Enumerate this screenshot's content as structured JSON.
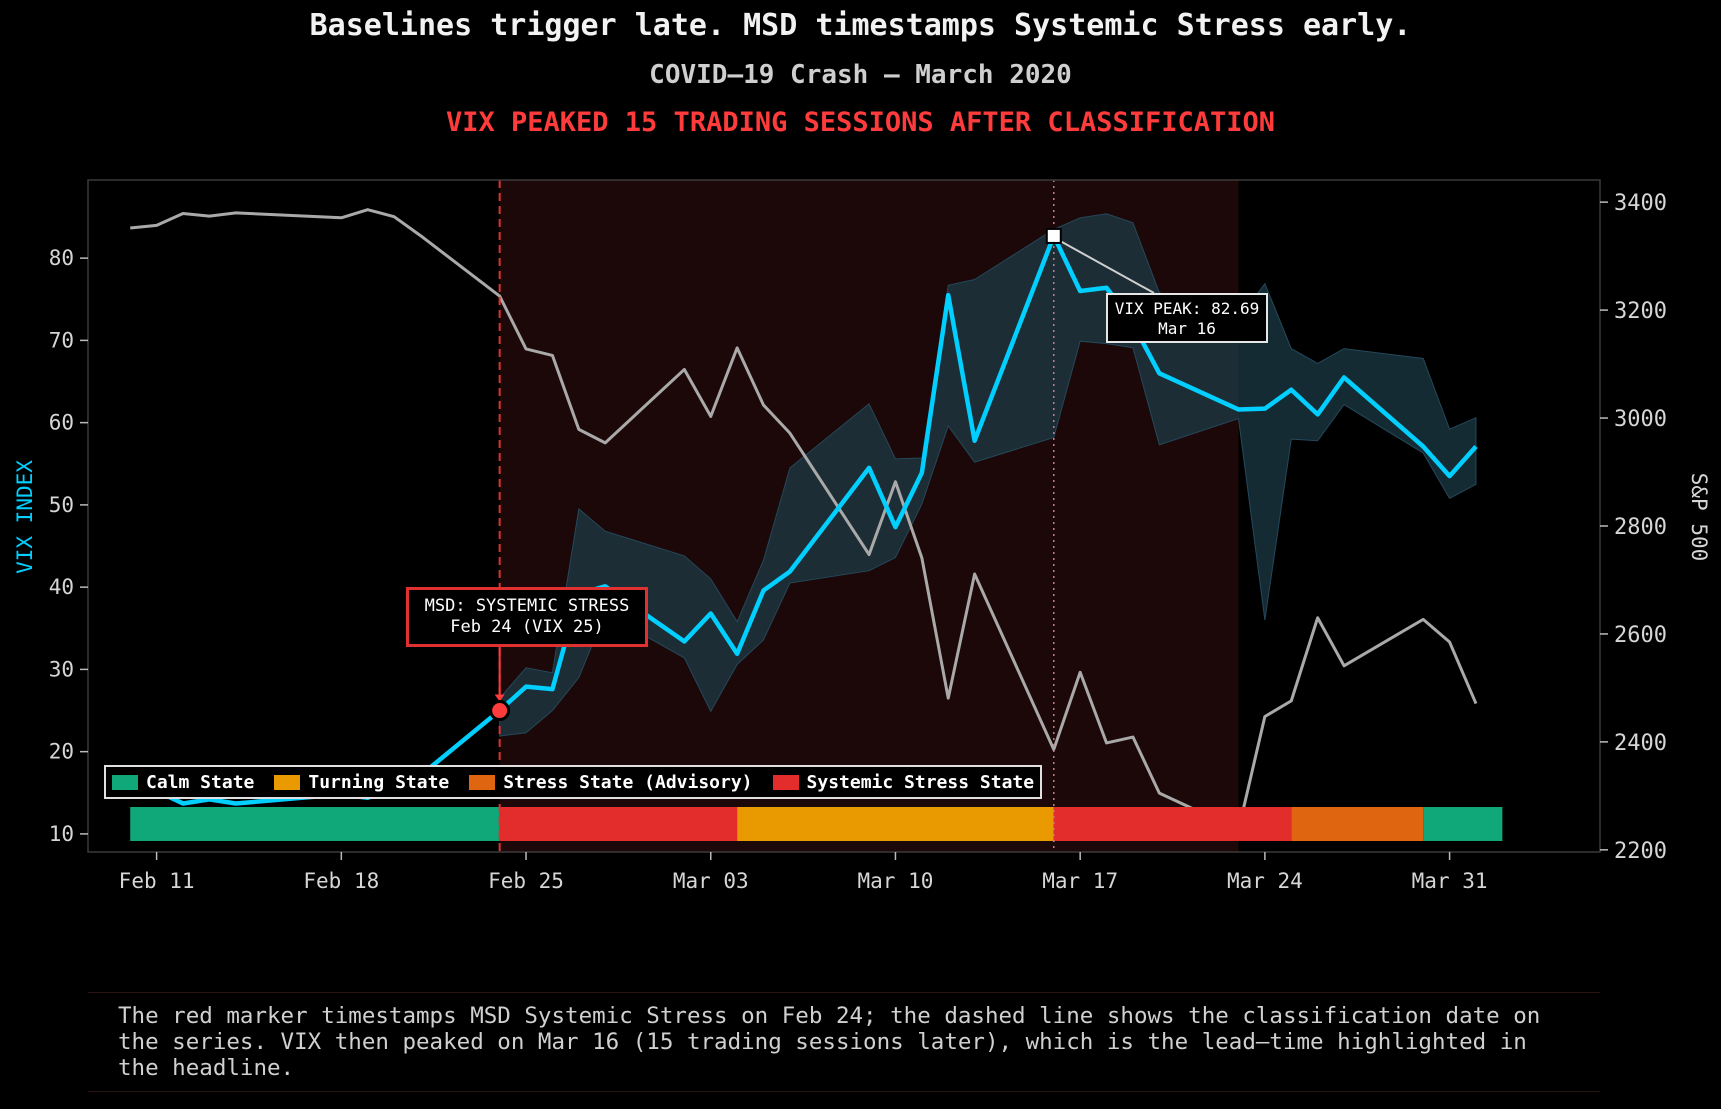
{
  "header": {
    "title": "Baselines trigger late. MSD timestamps Systemic Stress early.",
    "subtitle": "COVID–19 Crash — March 2020",
    "headline": "VIX PEAKED 15 TRADING SESSIONS AFTER CLASSIFICATION"
  },
  "colors": {
    "vix": "#00cfff",
    "spx": "#a9a9a9",
    "band": "#1c3a46",
    "stress_shade": "#1c0808",
    "calm": "#10a878",
    "turning": "#e89a00",
    "stress": "#e06510",
    "systemic": "#e32d2d"
  },
  "chart_data": {
    "type": "line",
    "xlabel": "",
    "ylabel_left": "VIX INDEX",
    "ylabel_right": "S&P 500",
    "x_ticks": [
      "Feb 11",
      "Feb 18",
      "Feb 25",
      "Mar 03",
      "Mar 10",
      "Mar 17",
      "Mar 24",
      "Mar 31"
    ],
    "y_left_ticks": [
      10,
      20,
      30,
      40,
      50,
      60,
      70,
      80
    ],
    "y_right_ticks": [
      2200,
      2400,
      2600,
      2800,
      3000,
      3200,
      3400
    ],
    "ylim_left": [
      7.8,
      89.5
    ],
    "ylim_right": [
      2196,
      3441
    ],
    "xlim_days": [
      -2.6,
      54.7
    ],
    "dates": [
      "Feb 10",
      "Feb 11",
      "Feb 12",
      "Feb 13",
      "Feb 14",
      "Feb 18",
      "Feb 19",
      "Feb 20",
      "Feb 21",
      "Feb 24",
      "Feb 25",
      "Feb 26",
      "Feb 27",
      "Feb 28",
      "Mar 02",
      "Mar 03",
      "Mar 04",
      "Mar 05",
      "Mar 06",
      "Mar 09",
      "Mar 10",
      "Mar 11",
      "Mar 12",
      "Mar 13",
      "Mar 16",
      "Mar 17",
      "Mar 18",
      "Mar 19",
      "Mar 20",
      "Mar 23",
      "Mar 24",
      "Mar 25",
      "Mar 26",
      "Mar 27",
      "Mar 30",
      "Mar 31",
      "Apr 01"
    ],
    "series": [
      {
        "name": "VIX INDEX",
        "values": [
          15.0,
          15.2,
          13.7,
          14.2,
          13.7,
          14.8,
          14.4,
          15.6,
          17.1,
          25.0,
          27.9,
          27.6,
          39.2,
          40.1,
          33.4,
          36.8,
          31.9,
          39.6,
          41.9,
          54.5,
          47.3,
          53.9,
          75.5,
          57.8,
          82.7,
          76.0,
          76.4,
          72.0,
          66.0,
          61.6,
          61.7,
          64.0,
          61.0,
          65.5,
          57.1,
          53.5,
          57.1
        ]
      },
      {
        "name": "S&P 500",
        "values": [
          3352,
          3357,
          3379,
          3374,
          3380,
          3371,
          3386,
          3373,
          3338,
          3226,
          3128,
          3116,
          2979,
          2954,
          3090,
          3003,
          3130,
          3024,
          2972,
          2747,
          2882,
          2741,
          2481,
          2711,
          2386,
          2529,
          2398,
          2409,
          2305,
          2237,
          2447,
          2476,
          2630,
          2541,
          2627,
          2585,
          2471
        ]
      }
    ],
    "band_upper": [
      null,
      null,
      null,
      null,
      null,
      null,
      null,
      null,
      null,
      26.5,
      30.2,
      29.6,
      49.5,
      46.8,
      43.8,
      41.0,
      35.8,
      43.3,
      54.5,
      62.3,
      55.6,
      55.7,
      76.7,
      77.4,
      83.5,
      84.9,
      85.4,
      84.3,
      75.8,
      72.6,
      76.9,
      69.0,
      67.2,
      69.0,
      67.8,
      59.2,
      60.6
    ],
    "band_lower": [
      null,
      null,
      null,
      null,
      null,
      null,
      null,
      null,
      null,
      21.9,
      22.3,
      25.0,
      29.0,
      36.8,
      31.4,
      24.9,
      30.6,
      33.6,
      40.5,
      42.0,
      43.6,
      50.1,
      59.6,
      55.2,
      58.2,
      69.9,
      69.6,
      69.1,
      57.3,
      60.5,
      36.0,
      58.0,
      57.8,
      62.2,
      56.3,
      50.8,
      52.5
    ],
    "regimes": [
      {
        "state": "Calm State",
        "from": -1,
        "to": 13,
        "color_key": "calm"
      },
      {
        "state": "Systemic Stress State",
        "from": 13,
        "to": 22,
        "color_key": "systemic"
      },
      {
        "state": "Turning State",
        "from": 22,
        "to": 34,
        "color_key": "turning"
      },
      {
        "state": "Systemic Stress State",
        "from": 34,
        "to": 43,
        "color_key": "systemic"
      },
      {
        "state": "Stress State (Advisory)",
        "from": 43,
        "to": 48,
        "color_key": "stress"
      },
      {
        "state": "Calm State",
        "from": 48,
        "to": 51,
        "color_key": "calm"
      }
    ],
    "stress_shade": {
      "from": 13,
      "to": 41
    },
    "classification_line_day": 13,
    "peak_line_day": 34,
    "legend": [
      "Calm State",
      "Turning State",
      "Stress State (Advisory)",
      "Systemic Stress State"
    ],
    "legend_placement": "bottom-left",
    "annotations": {
      "msd_line1": "MSD: SYSTEMIC STRESS",
      "msd_line2": "Feb 24 (VIX 25)",
      "peak_line1": "VIX PEAK: 82.69",
      "peak_line2": "Mar 16"
    }
  },
  "caption": "The red marker timestamps MSD Systemic Stress on Feb 24; the dashed line shows the classification date on the series. VIX then peaked on Mar 16 (15 trading sessions later), which is the lead–time highlighted in the headline."
}
